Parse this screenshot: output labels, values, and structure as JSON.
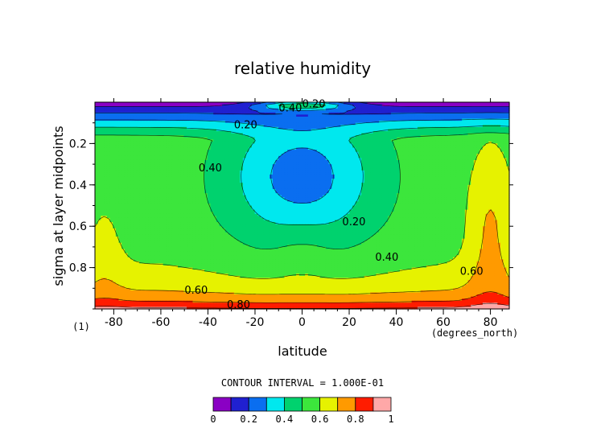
{
  "chart_data": {
    "type": "heatmap",
    "title": "relative humidity",
    "xlabel": "latitude",
    "ylabel": "sigma at layer midpoints",
    "x_units": "(degrees_north)",
    "y_units": "(1)",
    "xlim": [
      -88,
      88
    ],
    "ylim_reversed": [
      1.0,
      0.0
    ],
    "x_ticks": [
      -80,
      -60,
      -40,
      -20,
      0,
      20,
      40,
      60,
      80
    ],
    "x_tick_labels": [
      "-80",
      "-60",
      "-40",
      "-20",
      "0",
      "20",
      "40",
      "60",
      "80"
    ],
    "y_ticks": [
      0.2,
      0.4,
      0.6,
      0.8
    ],
    "y_tick_labels": [
      "0.2",
      "0.4",
      "0.6",
      "0.8"
    ],
    "contour_interval_label": "CONTOUR INTERVAL = 1.000E-01",
    "colorbar": {
      "levels": [
        0,
        0.1,
        0.2,
        0.3,
        0.4,
        0.5,
        0.6,
        0.7,
        0.8,
        0.9,
        1.0
      ],
      "tick_values": [
        0,
        0.2,
        0.4,
        0.6,
        0.8,
        1
      ],
      "tick_labels": [
        "0",
        "0.2",
        "0.4",
        "0.6",
        "0.8",
        "1"
      ],
      "colors": [
        "#8a00c4",
        "#2020d0",
        "#0a6ef0",
        "#00e8ee",
        "#00d26e",
        "#3ce63c",
        "#e6f200",
        "#ff9a00",
        "#ff1c00",
        "#ffa8a8"
      ]
    },
    "contour_labels": [
      {
        "text": "0.20",
        "lat": 5,
        "sigma": 0.01
      },
      {
        "text": "0.40",
        "lat": -5,
        "sigma": 0.03
      },
      {
        "text": "0.20",
        "lat": -24,
        "sigma": 0.11
      },
      {
        "text": "0.40",
        "lat": -39,
        "sigma": 0.32
      },
      {
        "text": "0.20",
        "lat": 22,
        "sigma": 0.58
      },
      {
        "text": "0.40",
        "lat": 36,
        "sigma": 0.75
      },
      {
        "text": "0.60",
        "lat": 72,
        "sigma": 0.82
      },
      {
        "text": "0.60",
        "lat": -45,
        "sigma": 0.91
      },
      {
        "text": "0.80",
        "lat": -27,
        "sigma": 0.98
      }
    ]
  }
}
